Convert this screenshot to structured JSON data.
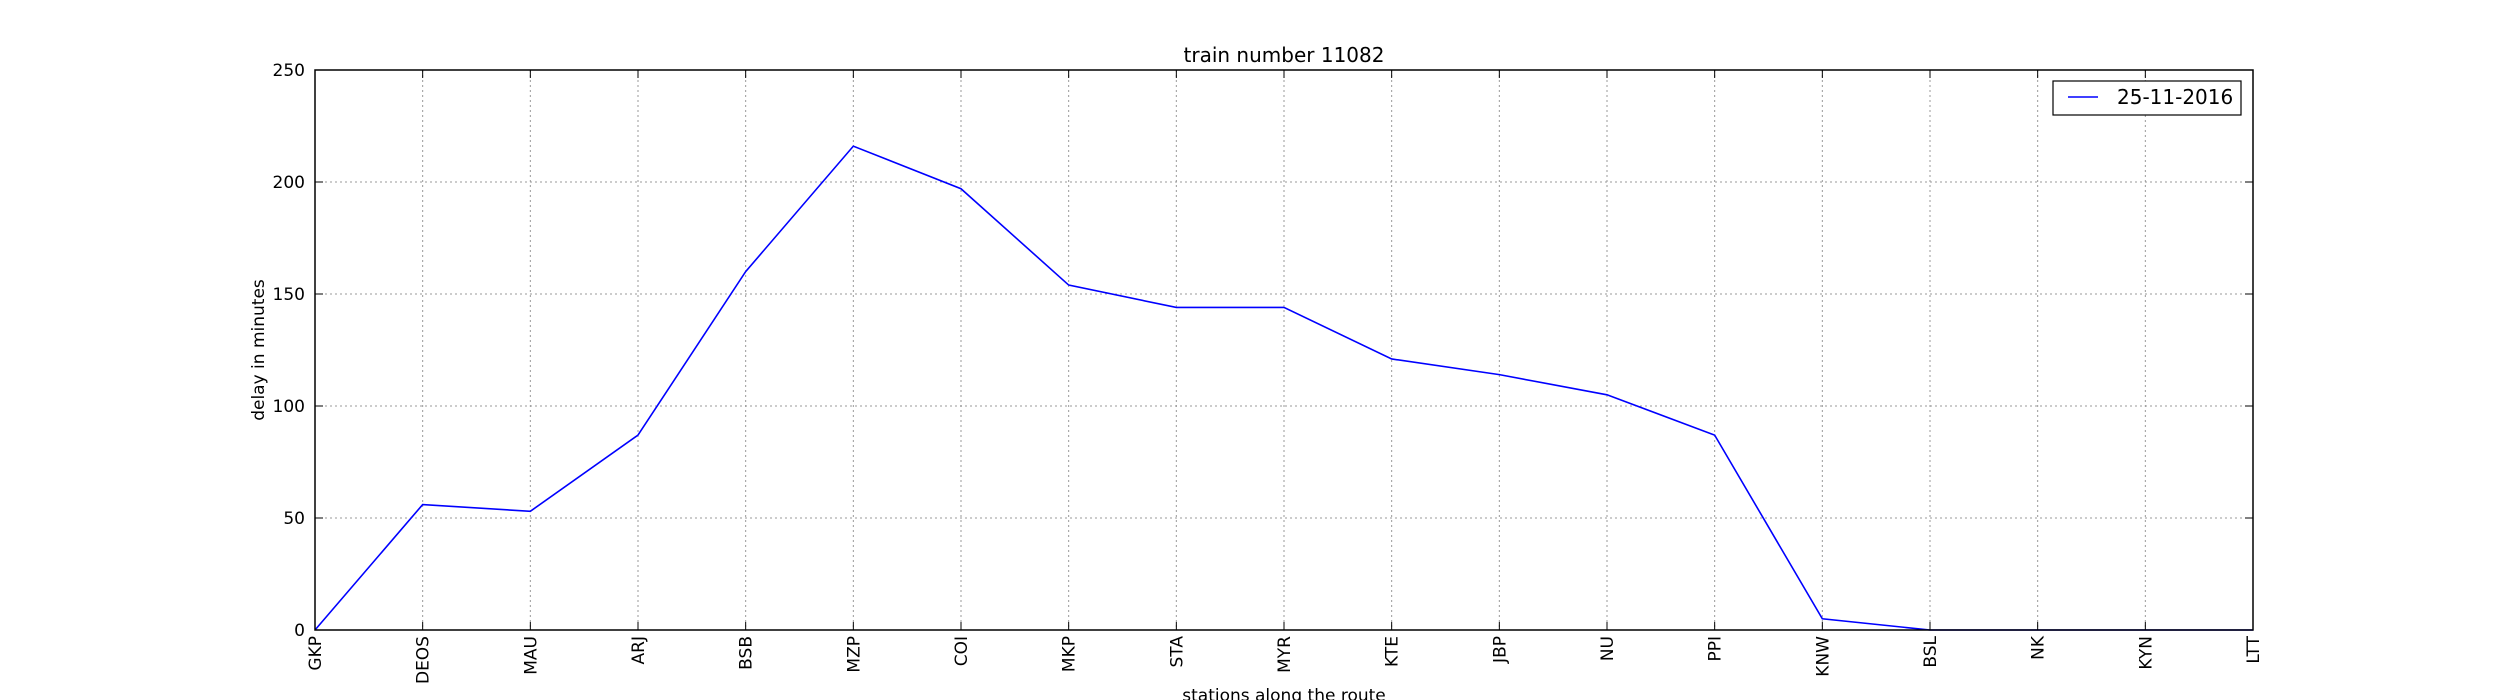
{
  "chart_data": {
    "type": "line",
    "title": "train number 11082",
    "xlabel": "stations along the route",
    "ylabel": "delay in minutes",
    "categories": [
      "GKP",
      "DEOS",
      "MAU",
      "ARJ",
      "BSB",
      "MZP",
      "COI",
      "MKP",
      "STA",
      "MYR",
      "KTE",
      "JBP",
      "NU",
      "PPI",
      "KNW",
      "BSL",
      "NK",
      "KYN",
      "LTT"
    ],
    "series": [
      {
        "name": "25-11-2016",
        "color": "#0000ff",
        "values": [
          0,
          56,
          53,
          87,
          160,
          216,
          197,
          154,
          144,
          144,
          121,
          114,
          105,
          87,
          5,
          0,
          0,
          0,
          0
        ]
      }
    ],
    "ylim": [
      0,
      250
    ],
    "yticks": [
      0,
      50,
      100,
      150,
      200,
      250
    ],
    "grid": true,
    "legend_position": "top-right"
  }
}
